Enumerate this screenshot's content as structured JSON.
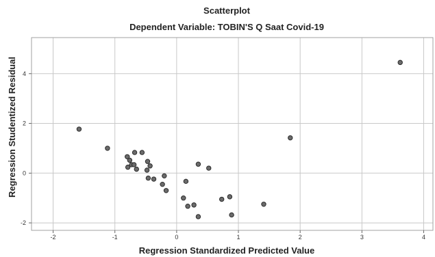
{
  "chart_data": {
    "type": "scatter",
    "title": "Scatterplot",
    "subtitle": "Dependent Variable: TOBIN'S Q Saat Covid-19",
    "xlabel": "Regression Standardized Predicted Value",
    "ylabel": "Regression Studentized Residual",
    "xlim": [
      -2.35,
      4.15
    ],
    "ylim": [
      -2.3,
      5.45
    ],
    "xticks": [
      -2,
      -1,
      0,
      1,
      2,
      3,
      4
    ],
    "yticks": [
      -2,
      0,
      2,
      4
    ],
    "grid": true,
    "colors": {
      "point_fill": "#6b6b6b",
      "point_edge": "#2b2b2b",
      "grid": "#c8c8c8"
    },
    "points": [
      {
        "x": 3.62,
        "y": 4.45
      },
      {
        "x": -1.58,
        "y": 1.77
      },
      {
        "x": 1.84,
        "y": 1.42
      },
      {
        "x": -1.12,
        "y": 1.0
      },
      {
        "x": -0.68,
        "y": 0.83
      },
      {
        "x": -0.56,
        "y": 0.83
      },
      {
        "x": -0.8,
        "y": 0.66
      },
      {
        "x": -0.76,
        "y": 0.52
      },
      {
        "x": -0.47,
        "y": 0.47
      },
      {
        "x": 0.35,
        "y": 0.36
      },
      {
        "x": -0.73,
        "y": 0.34
      },
      {
        "x": -0.69,
        "y": 0.34
      },
      {
        "x": -0.43,
        "y": 0.29
      },
      {
        "x": -0.79,
        "y": 0.24
      },
      {
        "x": 0.52,
        "y": 0.2
      },
      {
        "x": -0.65,
        "y": 0.16
      },
      {
        "x": -0.48,
        "y": 0.12
      },
      {
        "x": -0.2,
        "y": -0.11
      },
      {
        "x": -0.46,
        "y": -0.2
      },
      {
        "x": -0.37,
        "y": -0.24
      },
      {
        "x": 0.15,
        "y": -0.33
      },
      {
        "x": -0.23,
        "y": -0.45
      },
      {
        "x": -0.17,
        "y": -0.7
      },
      {
        "x": 0.86,
        "y": -0.95
      },
      {
        "x": 0.11,
        "y": -1.0
      },
      {
        "x": 0.73,
        "y": -1.05
      },
      {
        "x": 1.41,
        "y": -1.25
      },
      {
        "x": 0.28,
        "y": -1.28
      },
      {
        "x": 0.18,
        "y": -1.33
      },
      {
        "x": 0.89,
        "y": -1.68
      },
      {
        "x": 0.35,
        "y": -1.75
      }
    ]
  }
}
